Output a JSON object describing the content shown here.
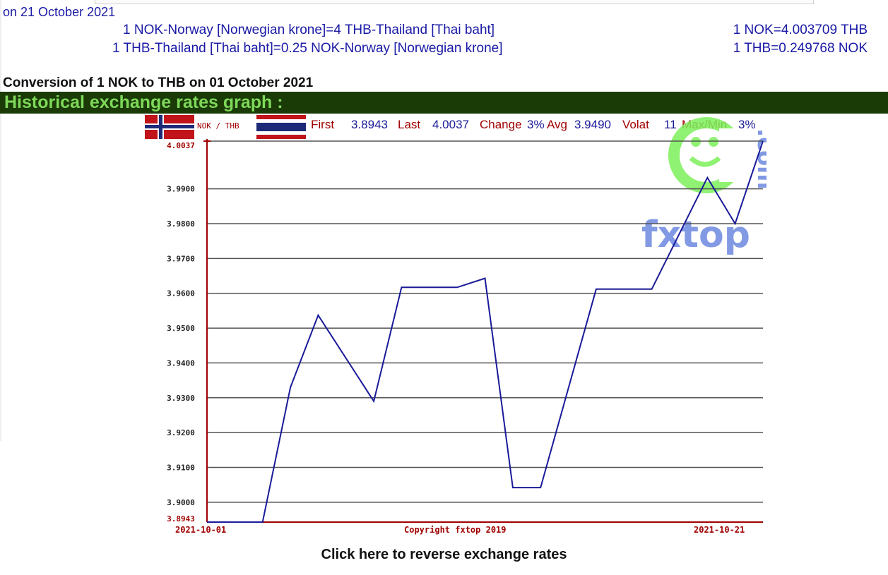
{
  "header": {
    "date_line": "on 21 October 2021",
    "rate_line_1": "1 NOK-Norway [Norwegian krone]=4 THB-Thailand [Thai baht]",
    "rate_line_2": "1 THB-Thailand [Thai baht]=0.25 NOK-Norway [Norwegian krone]",
    "rate_value_1": "1 NOK=4.003709 THB",
    "rate_value_2": "1 THB=0.249768 NOK"
  },
  "conversion_title": "Conversion of 1 NOK to THB on 01 October 2021",
  "history_title": "Historical exchange rates graph :",
  "reverse_link": "Click here to reverse exchange rates",
  "colors": {
    "link_blue": "#1a1aa6",
    "history_bar": "#1a3a06",
    "history_text": "#7ed85a",
    "series_line": "#1a1a99",
    "axis_red": "#a00000",
    "logo_green": "#7cf05a",
    "logo_blue": "#5a78d6"
  },
  "chart_data": {
    "type": "line",
    "pair_label": "NOK / THB",
    "stats": {
      "first_label": "First",
      "first_value": "3.8943",
      "last_label": "Last",
      "last_value": "4.0037",
      "change_label": "Change",
      "change_value": "3%",
      "avg_label": "Avg",
      "avg_value": "3.9490",
      "volat_label": "Volat",
      "volat_value": "11",
      "maxmin_label": "Max/Min",
      "maxmin_value": "3%"
    },
    "y_ticks": [
      "3.8943",
      "3.9000",
      "3.9100",
      "3.9200",
      "3.9300",
      "3.9400",
      "3.9500",
      "3.9600",
      "3.9700",
      "3.9800",
      "3.9900",
      "4.0037"
    ],
    "ylim": [
      3.8943,
      4.0037
    ],
    "gridlines": [
      3.9,
      3.91,
      3.92,
      3.93,
      3.94,
      3.95,
      3.96,
      3.97,
      3.98,
      3.99,
      4.0037
    ],
    "x_start_label": "2021-10-01",
    "x_end_label": "2021-10-21",
    "copyright": "Copyright fxtop 2019",
    "watermark": "fxtop",
    "watermark_suffix": ".com",
    "x_count": 21,
    "series": [
      {
        "values": [
          3.8943,
          3.8943,
          3.8943,
          3.933,
          3.9537,
          3.929,
          3.9617,
          3.9617,
          3.9643,
          3.9042,
          3.9042,
          3.9612,
          3.9612,
          3.9932,
          3.98,
          4.0037
        ],
        "x_index": [
          0,
          1,
          2,
          3,
          4,
          6,
          7,
          9,
          10,
          11,
          12,
          14,
          16,
          18,
          19,
          20
        ]
      }
    ]
  }
}
